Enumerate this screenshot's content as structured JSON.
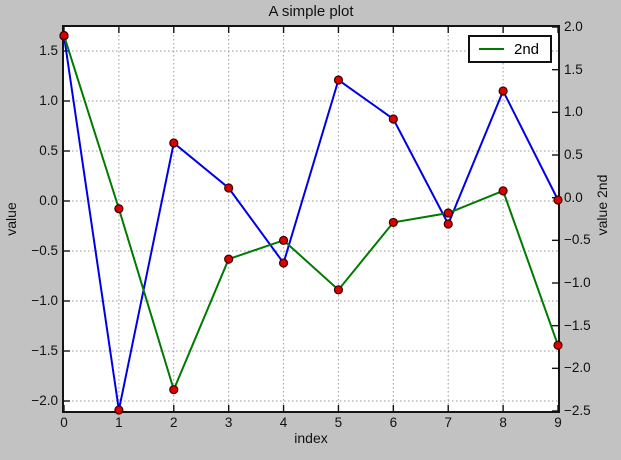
{
  "window": {
    "background": "#c2c2c2",
    "plot_background": "#ffffff",
    "frame_color": "#141414",
    "grid_color": "#9a9a9a"
  },
  "chart_data": {
    "type": "line",
    "title": "A simple plot",
    "xlabel": "index",
    "grid": true,
    "x": [
      0,
      1,
      2,
      3,
      4,
      5,
      6,
      7,
      8,
      9
    ],
    "x_axis": {
      "tick_labels": [
        "0",
        "1",
        "2",
        "3",
        "4",
        "5",
        "6",
        "7",
        "8",
        "9"
      ],
      "range": [
        0,
        9
      ]
    },
    "left_axis": {
      "label": "value",
      "tick_labels": [
        "1.5",
        "1.0",
        "0.5",
        "0.0",
        "−0.5",
        "−1.0",
        "−1.5",
        "−2.0"
      ],
      "tick_values": [
        1.5,
        1.0,
        0.5,
        0.0,
        -0.5,
        -1.0,
        -1.5,
        -2.0
      ],
      "range": [
        -2.1,
        1.74
      ]
    },
    "right_axis": {
      "label": "value 2nd",
      "tick_labels": [
        "2.0",
        "1.5",
        "1.0",
        "0.5",
        "0.0",
        "−0.5",
        "−1.0",
        "−1.5",
        "−2.0",
        "−2.5"
      ],
      "tick_values": [
        2.0,
        1.5,
        1.0,
        0.5,
        0.0,
        -0.5,
        -1.0,
        -1.5,
        -2.0,
        -2.5
      ],
      "range": [
        -2.5,
        2.0
      ]
    },
    "legend": {
      "position": "upper right",
      "entries": [
        {
          "label": "2nd",
          "color": "#007a00"
        }
      ]
    },
    "series": [
      {
        "name": "value",
        "axis": "left",
        "color": "#0000e8",
        "line_width": 2,
        "marker": {
          "shape": "circle",
          "fill": "#dd0000",
          "edge": "#3a0000",
          "radius": 4
        },
        "values": [
          1.65,
          -2.09,
          0.58,
          0.13,
          -0.62,
          1.21,
          0.82,
          -0.23,
          1.1,
          0.01
        ]
      },
      {
        "name": "2nd",
        "axis": "right",
        "color": "#007a00",
        "line_width": 2,
        "marker": {
          "shape": "circle",
          "fill": "#dd0000",
          "edge": "#3a0000",
          "radius": 4
        },
        "values": [
          1.9,
          -0.13,
          -2.25,
          -0.72,
          -0.5,
          -1.08,
          -0.29,
          -0.18,
          0.08,
          -1.73
        ]
      }
    ]
  }
}
